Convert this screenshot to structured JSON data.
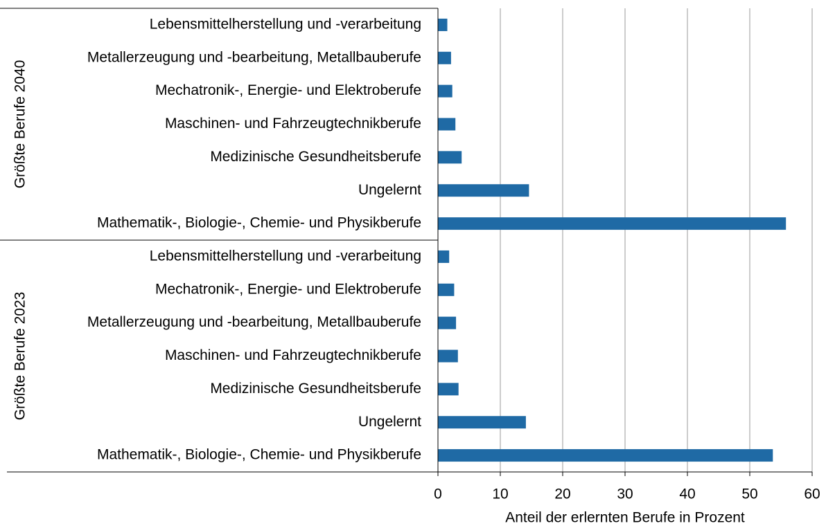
{
  "chart_data": {
    "type": "bar",
    "orientation": "horizontal",
    "xlabel": "Anteil der erlernten Berufe in Prozent",
    "color": "#1f6aa5",
    "groups": [
      {
        "name": "Größte Berufe 2040",
        "categories": [
          "Lebensmittelherstellung und -verarbeitung",
          "Metallerzeugung und -bearbeitung, Metallbauberufe",
          "Mechatronik-, Energie- und Elektroberufe",
          "Maschinen- und Fahrzeugtechnikberufe",
          "Medizinische Gesundheitsberufe",
          "Ungelernt",
          "Mathematik-, Biologie-, Chemie- und Physikberufe"
        ],
        "values": [
          1.5,
          2.1,
          2.3,
          2.8,
          3.8,
          14.6,
          55.8
        ]
      },
      {
        "name": "Größte Berufe 2023",
        "categories": [
          "Lebensmittelherstellung und -verarbeitung",
          "Mechatronik-, Energie- und Elektroberufe",
          "Metallerzeugung und -bearbeitung, Metallbauberufe",
          "Maschinen- und Fahrzeugtechnikberufe",
          "Medizinische Gesundheitsberufe",
          "Ungelernt",
          "Mathematik-, Biologie-, Chemie- und Physikberufe"
        ],
        "values": [
          1.8,
          2.6,
          2.9,
          3.2,
          3.3,
          14.1,
          53.7
        ]
      }
    ],
    "xlim": [
      0,
      60
    ],
    "xticks": [
      0,
      10,
      20,
      30,
      40,
      50,
      60
    ],
    "grid": true
  }
}
